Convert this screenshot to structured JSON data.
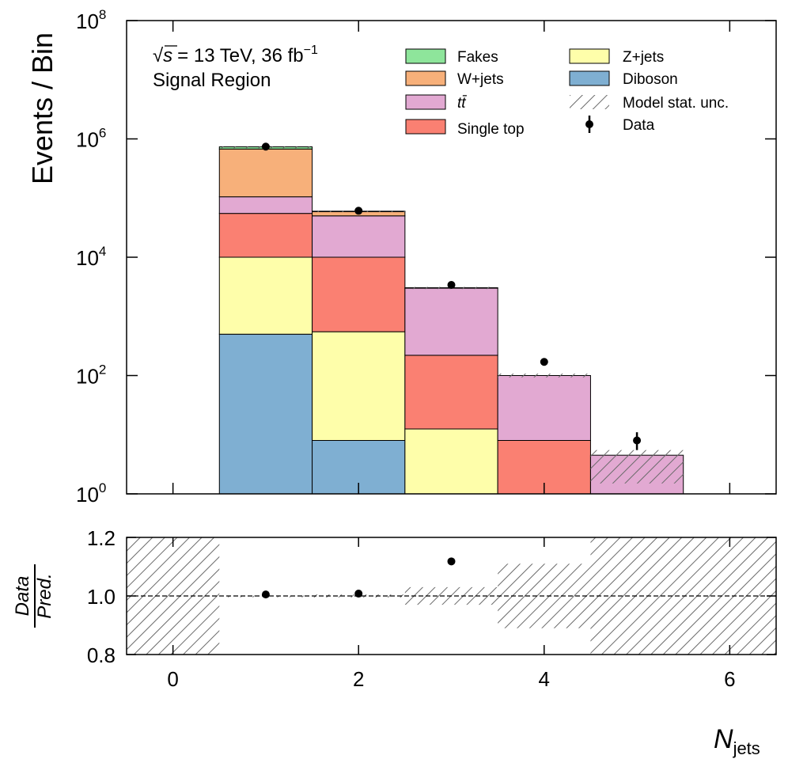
{
  "chart_data": [
    {
      "type": "bar",
      "stacked": true,
      "log_scale": true,
      "ylabel": "Events / Bin",
      "ylim": [
        1,
        100000000
      ],
      "y_ticks": [
        {
          "value": 1,
          "base": "10",
          "exp": "0"
        },
        {
          "value": 100,
          "base": "10",
          "exp": "2"
        },
        {
          "value": 10000,
          "base": "10",
          "exp": "4"
        },
        {
          "value": 1000000,
          "base": "10",
          "exp": "6"
        },
        {
          "value": 100000000,
          "base": "10",
          "exp": "8"
        }
      ],
      "xlim": [
        -0.5,
        6.5
      ],
      "annotation": {
        "sqrt": "√",
        "s": "s",
        "energy": "= 13 TeV, 36 fb",
        "lumi_exp": "−1",
        "region": "Signal Region"
      },
      "bins": [
        1,
        2,
        3,
        4,
        5
      ],
      "bin_width": 1,
      "series": [
        {
          "name": "Diboson",
          "color": "#7FAFD2",
          "values": [
            500,
            8,
            0,
            0,
            0
          ]
        },
        {
          "name": "Z+jets",
          "color": "#FEFEAA",
          "values": [
            9500,
            542,
            12.5,
            0,
            0
          ]
        },
        {
          "name": "Single top",
          "color": "#FA8072",
          "values": [
            45000,
            9450,
            207.5,
            8,
            0
          ]
        },
        {
          "name": "t t̄",
          "color": "#E2A9D2",
          "values": [
            50000,
            40000,
            2780,
            92,
            4.5
          ]
        },
        {
          "name": "W+jets",
          "color": "#F7B07A",
          "values": [
            570000,
            9000,
            50,
            0,
            0
          ]
        },
        {
          "name": "Fakes",
          "color": "#8EE59B",
          "values": [
            60000,
            1000,
            0,
            0,
            0
          ]
        }
      ],
      "stat_unc": [
        {
          "bin": 1,
          "low": 720000,
          "high": 740000
        },
        {
          "bin": 2,
          "low": 58500,
          "high": 61500
        },
        {
          "bin": 3,
          "low": 2900,
          "high": 3150
        },
        {
          "bin": 4,
          "low": 93,
          "high": 108
        },
        {
          "bin": 5,
          "low": 1.5,
          "high": 5.5
        }
      ],
      "data": {
        "name": "Data",
        "x": [
          1,
          2,
          3,
          4,
          5
        ],
        "y": [
          740000,
          61000,
          3400,
          170,
          8
        ],
        "err_low": [
          0,
          0,
          0,
          0,
          2.5
        ],
        "err_high": [
          0,
          0,
          0,
          0,
          3
        ]
      },
      "legend": {
        "placement": "top-right",
        "entries": [
          {
            "label": "Fakes",
            "kind": "box",
            "color": "#8EE59B"
          },
          {
            "label": "W+jets",
            "kind": "box",
            "color": "#F7B07A"
          },
          {
            "label": "tt̄",
            "kind": "box",
            "color": "#E2A9D2",
            "italic": true
          },
          {
            "label": "Single top",
            "kind": "box",
            "color": "#FA8072"
          },
          {
            "label": "Z+jets",
            "kind": "box",
            "color": "#FEFEAA"
          },
          {
            "label": "Diboson",
            "kind": "box",
            "color": "#7FAFD2"
          },
          {
            "label": "Model stat. unc.",
            "kind": "hatch"
          },
          {
            "label": "Data",
            "kind": "marker"
          }
        ]
      }
    },
    {
      "type": "ratio",
      "ylabel_num": "Data",
      "ylabel_den": "Pred.",
      "xlabel_main": "N",
      "xlabel_sub": "jets",
      "ylim": [
        0.8,
        1.2
      ],
      "y_ticks": [
        "0.8",
        "1.0",
        "1.2"
      ],
      "x_ticks": [
        "0",
        "2",
        "4",
        "6"
      ],
      "xlim": [
        -0.5,
        6.5
      ],
      "reference_line": 1.0,
      "unc_bands": [
        {
          "x0": -0.5,
          "x1": 0.5,
          "low": 0.8,
          "high": 1.2
        },
        {
          "x0": 0.5,
          "x1": 1.5,
          "low": 0.999,
          "high": 1.001
        },
        {
          "x0": 1.5,
          "x1": 2.5,
          "low": 0.995,
          "high": 1.005
        },
        {
          "x0": 2.5,
          "x1": 3.5,
          "low": 0.97,
          "high": 1.03
        },
        {
          "x0": 3.5,
          "x1": 4.5,
          "low": 0.89,
          "high": 1.11
        },
        {
          "x0": 4.5,
          "x1": 6.5,
          "low": 0.8,
          "high": 1.2
        }
      ],
      "points": {
        "x": [
          1,
          2,
          3
        ],
        "y": [
          1.005,
          1.008,
          1.118
        ],
        "err": [
          0.003,
          0.004,
          0.012
        ]
      }
    }
  ]
}
